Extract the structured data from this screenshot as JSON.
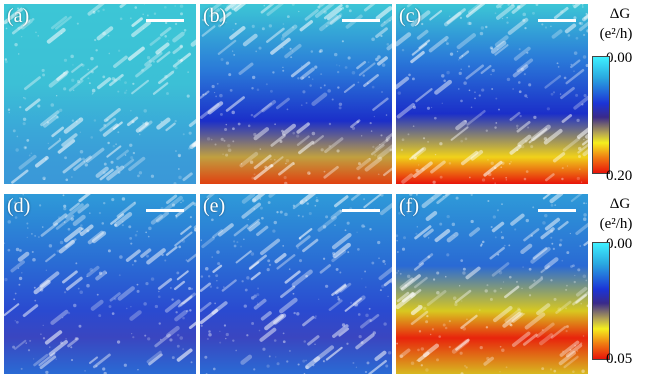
{
  "panels": [
    {
      "label": "(a)",
      "colorbar": "top",
      "level": 0.05
    },
    {
      "label": "(b)",
      "colorbar": "top",
      "level": 0.5
    },
    {
      "label": "(c)",
      "colorbar": "top",
      "level": 0.9
    },
    {
      "label": "(d)",
      "colorbar": "bottom",
      "level": 0.3
    },
    {
      "label": "(e)",
      "colorbar": "bottom",
      "level": 0.45
    },
    {
      "label": "(f)",
      "colorbar": "bottom",
      "level": 0.85
    }
  ],
  "colorbars": [
    {
      "title": "ΔG",
      "unit": "(e²/h)",
      "max_label": "0.00",
      "min_label": "0.20"
    },
    {
      "title": "ΔG",
      "unit": "(e²/h)",
      "max_label": "0.00",
      "min_label": "0.05"
    }
  ],
  "colors": {
    "cyan": "#33c8d8",
    "blue": "#1b2fc9",
    "yellow": "#f5ef1e",
    "red": "#e8140a"
  }
}
